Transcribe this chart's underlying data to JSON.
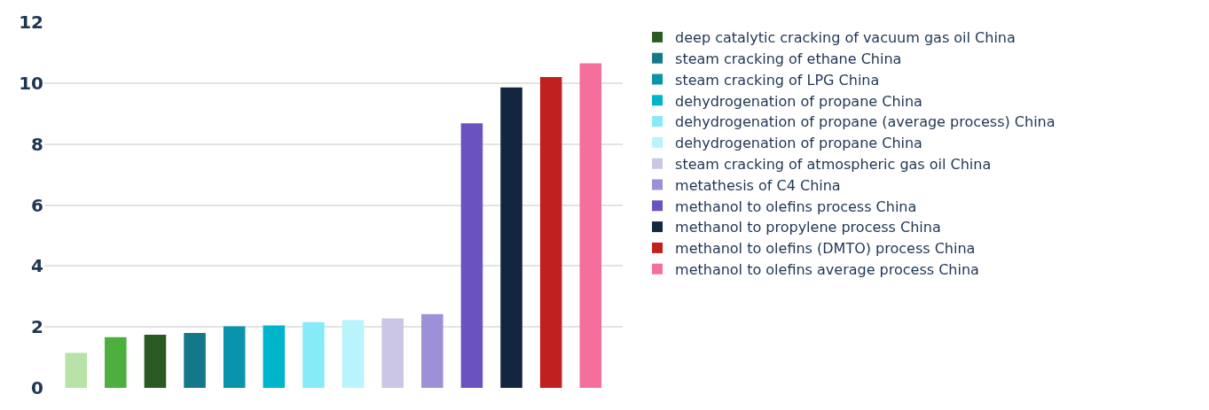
{
  "chart_data": {
    "type": "bar",
    "categories": [
      null,
      null,
      null,
      null,
      null,
      null,
      null,
      null,
      null,
      null,
      null,
      null,
      null,
      null
    ],
    "series": [
      {
        "color": "#b7e3a8",
        "values": [
          1.15,
          null,
          null,
          null,
          null,
          null,
          null,
          null,
          null,
          null,
          null,
          null,
          null,
          null
        ]
      },
      {
        "color": "#4caf3e",
        "values": [
          null,
          1.66,
          null,
          null,
          null,
          null,
          null,
          null,
          null,
          null,
          null,
          null,
          null,
          null
        ]
      },
      {
        "name": "deep catalytic cracking of vacuum gas oil China",
        "color": "#2a5a22",
        "values": [
          null,
          null,
          1.74,
          null,
          null,
          null,
          null,
          null,
          null,
          null,
          null,
          null,
          null,
          null
        ]
      },
      {
        "name": "steam cracking of ethane China",
        "color": "#14788a",
        "values": [
          null,
          null,
          null,
          1.8,
          null,
          null,
          null,
          null,
          null,
          null,
          null,
          null,
          null,
          null
        ]
      },
      {
        "name": "steam cracking of LPG China",
        "color": "#0a93ad",
        "values": [
          null,
          null,
          null,
          null,
          2.02,
          null,
          null,
          null,
          null,
          null,
          null,
          null,
          null,
          null
        ]
      },
      {
        "name": "dehydrogenation of propane China",
        "color": "#00b4cc",
        "values": [
          null,
          null,
          null,
          null,
          null,
          2.05,
          null,
          null,
          null,
          null,
          null,
          null,
          null,
          null
        ]
      },
      {
        "name": "dehydrogenation of propane (average process) China",
        "color": "#87eaf7",
        "values": [
          null,
          null,
          null,
          null,
          null,
          null,
          2.16,
          null,
          null,
          null,
          null,
          null,
          null,
          null
        ]
      },
      {
        "name": "dehydrogenation of propane China",
        "color": "#b9f3fb",
        "values": [
          null,
          null,
          null,
          null,
          null,
          null,
          null,
          2.22,
          null,
          null,
          null,
          null,
          null,
          null
        ]
      },
      {
        "name": "steam cracking of atmospheric gas oil China",
        "color": "#ccc6e6",
        "values": [
          null,
          null,
          null,
          null,
          null,
          null,
          null,
          null,
          2.28,
          null,
          null,
          null,
          null,
          null
        ]
      },
      {
        "name": "metathesis of C4 China",
        "color": "#9d90d6",
        "values": [
          null,
          null,
          null,
          null,
          null,
          null,
          null,
          null,
          null,
          2.42,
          null,
          null,
          null,
          null
        ]
      },
      {
        "name": "methanol to olefins process China",
        "color": "#6a53c0",
        "values": [
          null,
          null,
          null,
          null,
          null,
          null,
          null,
          null,
          null,
          null,
          8.68,
          null,
          null,
          null
        ]
      },
      {
        "name": "methanol to propylene process China",
        "color": "#13263f",
        "values": [
          null,
          null,
          null,
          null,
          null,
          null,
          null,
          null,
          null,
          null,
          null,
          9.86,
          null,
          null
        ]
      },
      {
        "name": "methanol to olefins (DMTO) process China",
        "color": "#c02020",
        "values": [
          null,
          null,
          null,
          null,
          null,
          null,
          null,
          null,
          null,
          null,
          null,
          null,
          10.2,
          null
        ]
      },
      {
        "name": "methanol to olefins average process China",
        "color": "#f46f9c",
        "values": [
          null,
          null,
          null,
          null,
          null,
          null,
          null,
          null,
          null,
          null,
          null,
          null,
          null,
          10.65
        ]
      }
    ],
    "ylim": [
      0,
      12
    ],
    "yticks": [
      0,
      2,
      4,
      6,
      8,
      10,
      12
    ],
    "grid": "y",
    "legend": "right",
    "tick_labels": "y"
  }
}
